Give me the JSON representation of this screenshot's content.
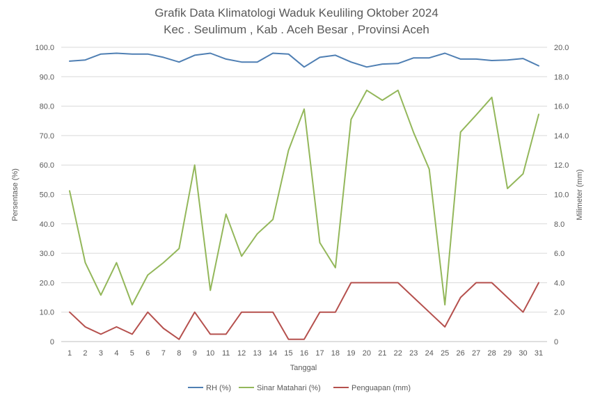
{
  "chart_data": {
    "type": "line",
    "title_line1": "Grafik Data Klimatologi Waduk Keuliling Oktober 2024",
    "title_line2": "Kec . Seulimum , Kab . Aceh Besar , Provinsi  Aceh",
    "xlabel": "Tanggal",
    "ylabel_left": "Persentase (%)",
    "ylabel_right": "Milimeter (mm)",
    "x": [
      1,
      2,
      3,
      4,
      5,
      6,
      7,
      8,
      9,
      10,
      11,
      12,
      13,
      14,
      15,
      16,
      17,
      18,
      19,
      20,
      21,
      22,
      23,
      24,
      25,
      26,
      27,
      28,
      29,
      30,
      31
    ],
    "y_left_ticks": [
      "0",
      "10.0",
      "20.0",
      "30.0",
      "40.0",
      "50.0",
      "60.0",
      "70.0",
      "80.0",
      "90.0",
      "100.0"
    ],
    "y_right_ticks": [
      "0",
      "2.0",
      "4.0",
      "6.0",
      "8.0",
      "10.0",
      "12.0",
      "14.0",
      "16.0",
      "18.0",
      "20.0"
    ],
    "ylim_left": [
      0,
      100
    ],
    "ylim_right": [
      0,
      20
    ],
    "grid": "horizontal",
    "legend_position": "bottom",
    "series": [
      {
        "name": "RH (%)",
        "axis": "left",
        "color": "#4f7fb3",
        "values": [
          95.3,
          95.7,
          97.7,
          98.0,
          97.7,
          97.7,
          96.6,
          95.0,
          97.3,
          98.0,
          96.0,
          95.0,
          95.0,
          98.0,
          97.7,
          93.3,
          96.6,
          97.3,
          95.0,
          93.3,
          94.3,
          94.5,
          96.4,
          96.4,
          98.0,
          96.0,
          96.0,
          95.5,
          95.7,
          96.2,
          93.7
        ]
      },
      {
        "name": "Sinar Matahari (%)",
        "axis": "left",
        "color": "#93b75a",
        "values": [
          51.2,
          26.8,
          15.8,
          26.8,
          12.5,
          22.6,
          26.8,
          31.6,
          60.0,
          17.4,
          43.3,
          29.0,
          36.6,
          41.5,
          65.0,
          79.0,
          33.6,
          25.1,
          75.5,
          85.4,
          82.0,
          85.4,
          71.0,
          58.6,
          12.5,
          71.2,
          77.0,
          83.0,
          52.0,
          57.0,
          77.2
        ]
      },
      {
        "name": "Penguapan (mm)",
        "axis": "right",
        "color": "#b5504d",
        "values": [
          2.0,
          1.0,
          0.5,
          1.0,
          0.5,
          2.0,
          0.9,
          0.15,
          2.0,
          0.5,
          0.5,
          2.0,
          2.0,
          2.0,
          0.15,
          0.15,
          2.0,
          2.0,
          4.0,
          4.0,
          4.0,
          4.0,
          3.0,
          2.0,
          1.0,
          3.0,
          4.0,
          4.0,
          3.0,
          2.0,
          4.0
        ]
      }
    ]
  }
}
